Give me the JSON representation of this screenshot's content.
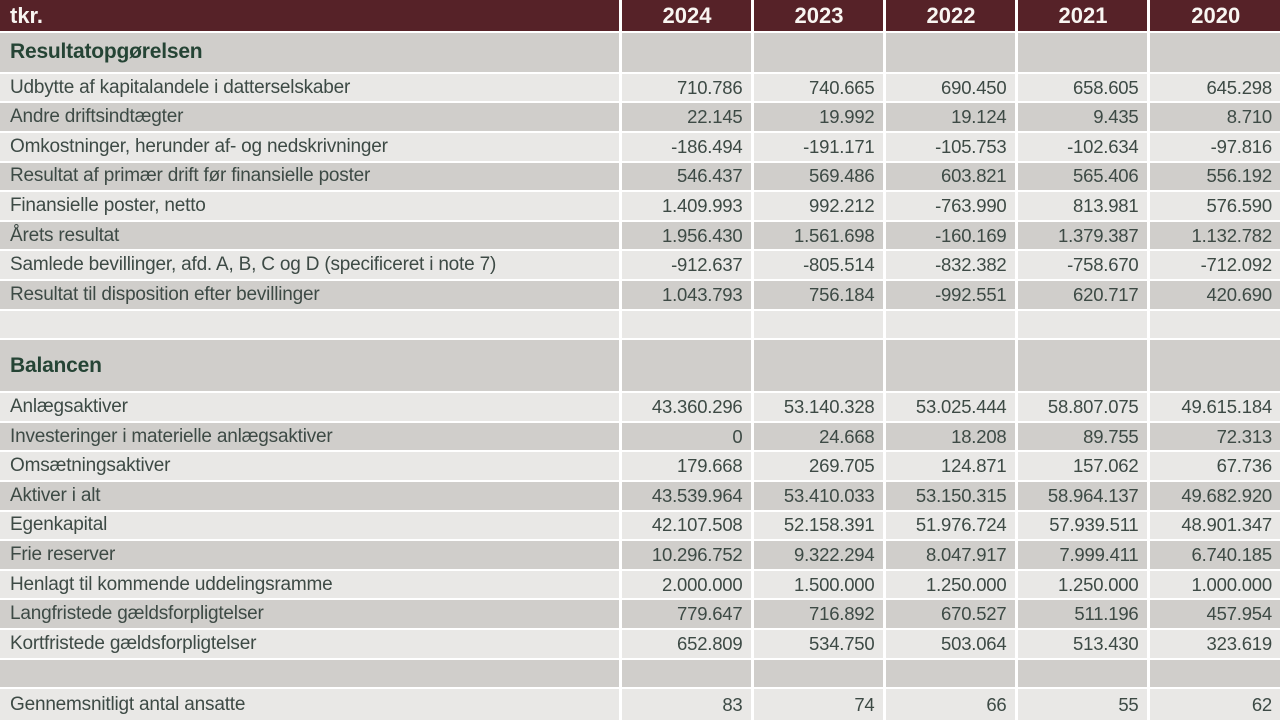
{
  "unit_label": "tkr.",
  "years": [
    "2024",
    "2023",
    "2022",
    "2021",
    "2020"
  ],
  "colors": {
    "accent": "#562228",
    "header_text": "#f8f5f1",
    "row_light": "#e9e8e6",
    "row_dark": "#d0cecb",
    "body_text": "#3d4a45",
    "section_text": "#254435"
  },
  "rows": [
    {
      "type": "section",
      "label": "Resultatopgørelsen"
    },
    {
      "type": "data",
      "label": "Udbytte af kapitalandele i datterselskaber",
      "values": [
        "710.786",
        "740.665",
        "690.450",
        "658.605",
        "645.298"
      ]
    },
    {
      "type": "data",
      "label": "Andre driftsindtægter",
      "values": [
        "22.145",
        "19.992",
        "19.124",
        "9.435",
        "8.710"
      ]
    },
    {
      "type": "data",
      "label": "Omkostninger, herunder af- og nedskrivninger",
      "values": [
        "-186.494",
        "-191.171",
        "-105.753",
        "-102.634",
        "-97.816"
      ]
    },
    {
      "type": "data",
      "label": "Resultat af primær drift før finansielle poster",
      "values": [
        "546.437",
        "569.486",
        "603.821",
        "565.406",
        "556.192"
      ]
    },
    {
      "type": "data",
      "label": "Finansielle poster, netto",
      "values": [
        "1.409.993",
        "992.212",
        "-763.990",
        "813.981",
        "576.590"
      ]
    },
    {
      "type": "data",
      "label": "Årets resultat",
      "values": [
        "1.956.430",
        "1.561.698",
        "-160.169",
        "1.379.387",
        "1.132.782"
      ]
    },
    {
      "type": "data",
      "label": "Samlede bevillinger, afd. A, B, C og D (specificeret i note 7)",
      "values": [
        "-912.637",
        "-805.514",
        "-832.382",
        "-758.670",
        "-712.092"
      ]
    },
    {
      "type": "data",
      "label": "Resultat til disposition efter bevillinger",
      "values": [
        "1.043.793",
        "756.184",
        "-992.551",
        "620.717",
        "420.690"
      ]
    },
    {
      "type": "spacer"
    },
    {
      "type": "section",
      "label": "Balancen"
    },
    {
      "type": "data",
      "label": "Anlægsaktiver",
      "values": [
        "43.360.296",
        "53.140.328",
        "53.025.444",
        "58.807.075",
        "49.615.184"
      ]
    },
    {
      "type": "data",
      "label": "Investeringer i materielle anlægsaktiver",
      "values": [
        "0",
        "24.668",
        "18.208",
        "89.755",
        "72.313"
      ]
    },
    {
      "type": "data",
      "label": "Omsætningsaktiver",
      "values": [
        "179.668",
        "269.705",
        "124.871",
        "157.062",
        "67.736"
      ]
    },
    {
      "type": "data",
      "label": "Aktiver i alt",
      "values": [
        "43.539.964",
        "53.410.033",
        "53.150.315",
        "58.964.137",
        "49.682.920"
      ]
    },
    {
      "type": "data",
      "label": "Egenkapital",
      "values": [
        "42.107.508",
        "52.158.391",
        "51.976.724",
        "57.939.511",
        "48.901.347"
      ]
    },
    {
      "type": "data",
      "label": "Frie reserver",
      "values": [
        "10.296.752",
        "9.322.294",
        "8.047.917",
        "7.999.411",
        "6.740.185"
      ]
    },
    {
      "type": "data",
      "label": "Henlagt til kommende uddelingsramme",
      "values": [
        "2.000.000",
        "1.500.000",
        "1.250.000",
        "1.250.000",
        "1.000.000"
      ]
    },
    {
      "type": "data",
      "label": "Langfristede gældsforpligtelser",
      "values": [
        "779.647",
        "716.892",
        "670.527",
        "511.196",
        "457.954"
      ]
    },
    {
      "type": "data",
      "label": "Kortfristede gældsforpligtelser",
      "values": [
        "652.809",
        "534.750",
        "503.064",
        "513.430",
        "323.619"
      ]
    },
    {
      "type": "spacer"
    },
    {
      "type": "data",
      "label": "Gennemsnitligt antal ansatte",
      "values": [
        "83",
        "74",
        "66",
        "55",
        "62"
      ]
    }
  ]
}
